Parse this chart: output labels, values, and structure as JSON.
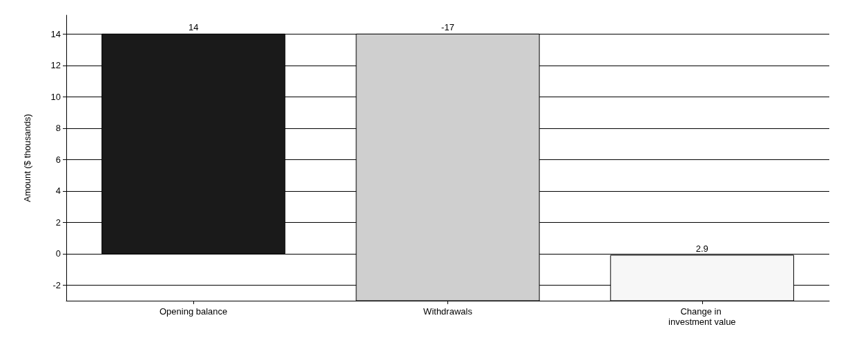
{
  "chart_data": {
    "type": "bar",
    "ylabel": "Amount ($ thousands)",
    "categories": [
      "Opening balance",
      "Withdrawals",
      "Change in investment value"
    ],
    "values": [
      14,
      -17,
      2.9
    ],
    "base": [
      0,
      14,
      -3
    ],
    "colors": [
      "#1a1a1a",
      "#cfcfcf",
      "#f7f7f7"
    ],
    "ylim": [
      -3,
      15.2
    ],
    "yticks": [
      -2,
      0,
      2,
      4,
      6,
      8,
      10,
      12,
      14
    ],
    "grid": "y",
    "data_labels": true
  }
}
